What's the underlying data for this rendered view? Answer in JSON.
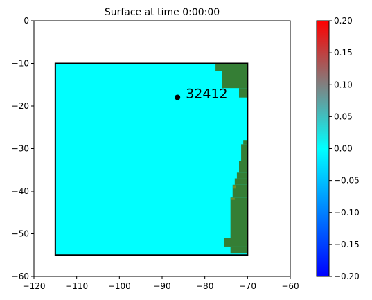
{
  "chart_data": {
    "type": "heatmap",
    "title": "Surface at time 0:00:00",
    "xlabel": "",
    "ylabel": "",
    "xlim": [
      -120,
      -60
    ],
    "ylim": [
      -60,
      0
    ],
    "xticks": [
      -120,
      -110,
      -100,
      -90,
      -80,
      -70,
      -60
    ],
    "yticks": [
      0,
      -10,
      -20,
      -30,
      -40,
      -50,
      -60
    ],
    "xtick_labels": [
      "−120",
      "−110",
      "−100",
      "−90",
      "−80",
      "−70",
      "−60"
    ],
    "ytick_labels": [
      "0",
      "−10",
      "−20",
      "−30",
      "−40",
      "−50",
      "−60"
    ],
    "grid": false,
    "domain_box": {
      "x": [
        -115,
        -70
      ],
      "y": [
        -55,
        -10
      ]
    },
    "surface_value": 0.0,
    "colors": {
      "water": "#00ffff",
      "land": "#357e35",
      "land_highlight": "#6f8f28",
      "box": "#000000"
    },
    "land_cells": [
      [
        -77.5,
        -10.0,
        -70.0,
        -11.8
      ],
      [
        -76.0,
        -11.8,
        -70.0,
        -15.8
      ],
      [
        -72.0,
        -15.8,
        -70.0,
        -18.0
      ],
      [
        -71.0,
        -28.0,
        -70.0,
        -29.0
      ],
      [
        -71.5,
        -29.0,
        -70.0,
        -33.0
      ],
      [
        -72.0,
        -33.0,
        -70.0,
        -35.5
      ],
      [
        -72.5,
        -35.5,
        -70.0,
        -37.0
      ],
      [
        -73.0,
        -37.0,
        -70.0,
        -38.5
      ],
      [
        -73.5,
        -38.5,
        -70.0,
        -41.5
      ],
      [
        -74.0,
        -41.5,
        -70.0,
        -52.0
      ],
      [
        -75.5,
        -51.0,
        -70.0,
        -53.0
      ],
      [
        -74.0,
        -53.0,
        -70.0,
        -54.5
      ]
    ],
    "land_highlight_cells": [
      [
        -73.4,
        -38.6,
        -72.8,
        -39.4
      ],
      [
        -73.8,
        -41.6,
        -73.0,
        -41.9
      ]
    ],
    "gauge": {
      "label": "32412",
      "x": -86.4,
      "y": -17.97
    },
    "colorbar": {
      "min": -0.2,
      "max": 0.2,
      "ticks": [
        0.2,
        0.15,
        0.1,
        0.05,
        0.0,
        -0.05,
        -0.1,
        -0.15,
        -0.2
      ],
      "tick_labels": [
        "0.20",
        "0.15",
        "0.10",
        "0.05",
        "0.00",
        "−0.05",
        "−0.10",
        "−0.15",
        "−0.20"
      ],
      "stops": [
        {
          "value": -0.2,
          "color": "#0000ff"
        },
        {
          "value": -0.1,
          "color": "#0080ff"
        },
        {
          "value": 0.0,
          "color": "#00ffff"
        },
        {
          "value": 0.1,
          "color": "#808080"
        },
        {
          "value": 0.2,
          "color": "#ff0000"
        }
      ]
    }
  }
}
